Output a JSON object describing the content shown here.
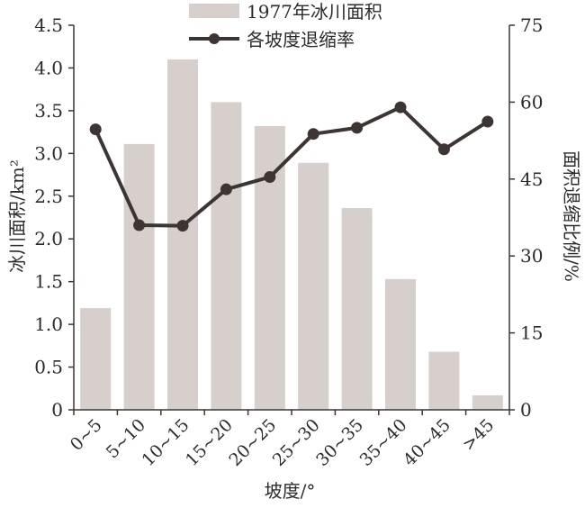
{
  "chart_data": {
    "type": "bar",
    "xlabel": "坡度/°",
    "ylabel_left": "冰川面积/km²",
    "ylabel_right": "面积退缩比例/%",
    "categories": [
      "0~5",
      "5~10",
      "10~15",
      "15~20",
      "20~25",
      "25~30",
      "30~35",
      "35~40",
      "40~45",
      ">45"
    ],
    "y_left_ticks": [
      "0",
      "0.5",
      "1.0",
      "1.5",
      "2.0",
      "2.5",
      "3.0",
      "3.5",
      "4.0",
      "4.5"
    ],
    "y_right_ticks": [
      "0",
      "15",
      "30",
      "45",
      "60",
      "75"
    ],
    "ylim_left": [
      0,
      4.5
    ],
    "ylim_right": [
      0,
      75
    ],
    "grid": false,
    "legend_placement": "top-center",
    "series": [
      {
        "name": "1977年冰川面积",
        "type": "bar",
        "axis": "left",
        "color": "#d6cfcb",
        "values": [
          1.19,
          3.11,
          4.1,
          3.6,
          3.32,
          2.89,
          2.36,
          1.53,
          0.68,
          0.17
        ]
      },
      {
        "name": "各坡度退缩率",
        "type": "line",
        "axis": "right",
        "color": "#3d3533",
        "values": [
          54.7,
          36.0,
          35.9,
          43.0,
          45.4,
          53.8,
          55.0,
          59.0,
          50.8,
          56.2
        ]
      }
    ]
  }
}
